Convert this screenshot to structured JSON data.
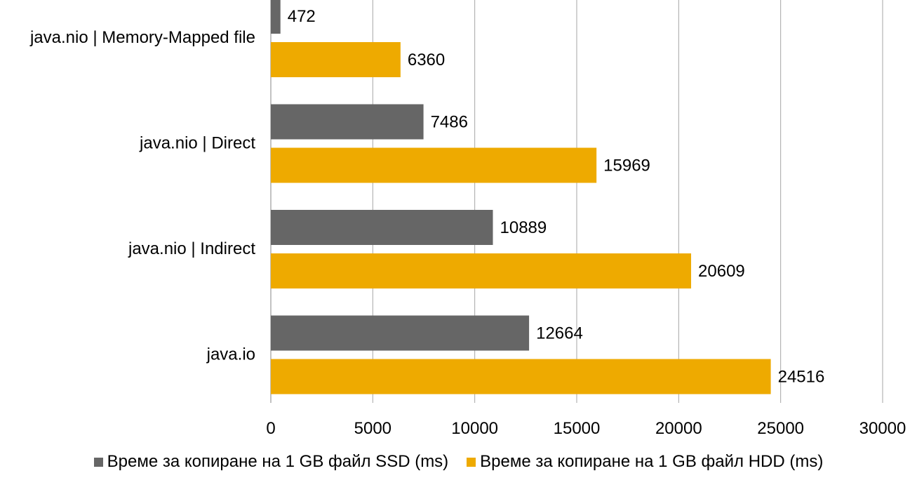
{
  "chart_data": {
    "type": "bar",
    "orientation": "horizontal",
    "categories": [
      "java.nio | Memory-Mapped file",
      "java.nio | Direct",
      "java.nio | Indirect",
      "java.io"
    ],
    "series": [
      {
        "name": "Време за копиране на 1 GB файл SSD (ms)",
        "color": "#666666",
        "values": [
          472,
          7486,
          10889,
          12664
        ]
      },
      {
        "name": "Време за копиране на 1 GB файл HDD (ms)",
        "color": "#EEAA00",
        "values": [
          6360,
          15969,
          20609,
          24516
        ]
      }
    ],
    "xlim": [
      0,
      30000
    ],
    "xticks": [
      0,
      5000,
      10000,
      15000,
      20000,
      25000,
      30000
    ],
    "grid": true,
    "legend_position": "bottom",
    "data_labels": true
  }
}
